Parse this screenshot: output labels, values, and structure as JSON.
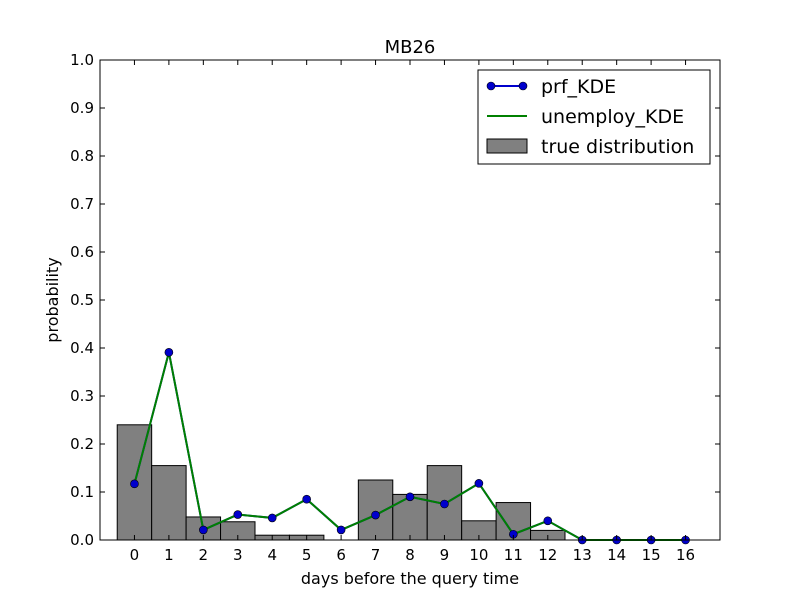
{
  "chart_data": {
    "type": "line",
    "title": "MB26",
    "xlabel": "days before the query time",
    "ylabel": "probability",
    "xlim": [
      -1,
      17
    ],
    "ylim": [
      0.0,
      1.0
    ],
    "x_ticks": [
      "0",
      "1",
      "2",
      "3",
      "4",
      "5",
      "6",
      "7",
      "8",
      "9",
      "10",
      "11",
      "12",
      "13",
      "14",
      "15",
      "16"
    ],
    "y_ticks": [
      "0.0",
      "0.1",
      "0.2",
      "0.3",
      "0.4",
      "0.5",
      "0.6",
      "0.7",
      "0.8",
      "0.9",
      "1.0"
    ],
    "grid": false,
    "legend_position": "top-right",
    "x": [
      0,
      1,
      2,
      3,
      4,
      5,
      6,
      7,
      8,
      9,
      10,
      11,
      12,
      13,
      14,
      15,
      16
    ],
    "series": [
      {
        "name": "prf_KDE",
        "kind": "line-markers",
        "color": "#0000cc",
        "values": [
          0.117,
          0.391,
          0.021,
          0.053,
          0.046,
          0.085,
          0.021,
          0.052,
          0.09,
          0.075,
          0.118,
          0.012,
          0.04,
          0.0,
          0.0,
          0.0,
          0.0
        ]
      },
      {
        "name": "unemploy_KDE",
        "kind": "line",
        "color": "#008000",
        "values": [
          0.117,
          0.391,
          0.021,
          0.053,
          0.046,
          0.085,
          0.021,
          0.052,
          0.09,
          0.075,
          0.118,
          0.012,
          0.04,
          0.0,
          0.0,
          0.0,
          0.0
        ]
      },
      {
        "name": "true distribution",
        "kind": "histogram",
        "color": "#808080",
        "values": [
          0.24,
          0.155,
          0.048,
          0.038,
          0.01,
          0.01,
          0.0,
          0.125,
          0.095,
          0.155,
          0.04,
          0.078,
          0.02,
          0.0,
          0.0,
          0.0,
          0.0
        ]
      }
    ]
  }
}
